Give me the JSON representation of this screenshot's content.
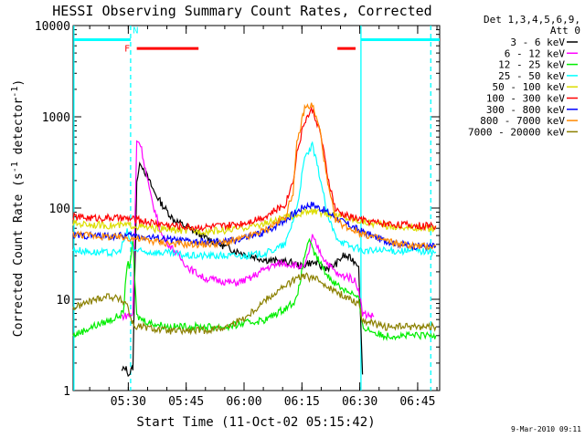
{
  "chart_data": {
    "type": "line",
    "title": "HESSI Observing Summary Count Rates, Corrected",
    "xlabel": "Start Time (11-Oct-02 05:15:42)",
    "ylabel": "Corrected Count Rate (s",
    "ylabel_sup1": "-1",
    "ylabel_mid": " detector",
    "ylabel_sup2": "-1",
    "ylabel_end": ")",
    "footer": "9-Mar-2010 09:11",
    "y_scale": "log",
    "ylim": [
      1,
      10000
    ],
    "xlim_minutes": [
      0,
      95
    ],
    "x_ticks": [
      {
        "label": "05:30",
        "m": 14.3
      },
      {
        "label": "05:45",
        "m": 29.3
      },
      {
        "label": "06:00",
        "m": 44.3
      },
      {
        "label": "06:15",
        "m": 59.3
      },
      {
        "label": "06:30",
        "m": 74.3
      },
      {
        "label": "06:45",
        "m": 89.3
      }
    ],
    "y_ticks": [
      {
        "label": "1",
        "v": 1
      },
      {
        "label": "10",
        "v": 10
      },
      {
        "label": "100",
        "v": 100
      },
      {
        "label": "1000",
        "v": 1000
      },
      {
        "label": "10000",
        "v": 10000
      }
    ],
    "legend_placement": "outside-right",
    "legend_header": [
      "Det 1,3,4,5,6,9,",
      "Att 0"
    ],
    "series": [
      {
        "name": "3 - 6 keV",
        "color": "#000000",
        "x": [
          12.5,
          13.5,
          14.5,
          15.5,
          16.5,
          17.5,
          19,
          21,
          23,
          26,
          30,
          34,
          38,
          42,
          46,
          50,
          54,
          57,
          59,
          61,
          63,
          64,
          66,
          68,
          70,
          72,
          74,
          75
        ],
        "y": [
          1.6,
          1.8,
          1.5,
          1.8,
          200,
          320,
          230,
          150,
          110,
          75,
          60,
          48,
          40,
          34,
          30,
          27,
          26,
          25,
          23,
          25,
          25,
          23,
          22,
          24,
          30,
          28,
          24,
          1.5
        ]
      },
      {
        "name": "6 - 12 keV",
        "color": "#ff00ff",
        "x": [
          12.5,
          15.5,
          16.5,
          17.5,
          18.5,
          20,
          23,
          26,
          30,
          34,
          38,
          42,
          46,
          50,
          54,
          57,
          60,
          61,
          62,
          63,
          65,
          67,
          69,
          71,
          73,
          74,
          75,
          78
        ],
        "y": [
          6.5,
          6.8,
          560,
          500,
          300,
          140,
          50,
          35,
          22,
          17,
          16,
          15,
          17,
          22,
          25,
          24,
          22,
          32,
          48,
          40,
          28,
          22,
          18,
          18,
          16,
          13,
          7,
          6.5
        ]
      },
      {
        "name": "12 - 25 keV",
        "color": "#00ee00",
        "x": [
          0,
          5,
          10,
          13,
          14,
          14.5,
          15.5,
          16.5,
          18,
          20,
          25,
          30,
          35,
          40,
          45,
          50,
          55,
          58,
          60,
          61,
          62,
          64,
          66,
          68,
          70,
          72,
          74,
          75,
          80,
          90,
          94
        ],
        "y": [
          4,
          5,
          6,
          7,
          25,
          23,
          40,
          6.5,
          6,
          5.5,
          5,
          5,
          5,
          5,
          5.5,
          6,
          8,
          10,
          30,
          45,
          35,
          25,
          18,
          15,
          13,
          12,
          10,
          5,
          4,
          4,
          4
        ]
      },
      {
        "name": "25 - 50 keV",
        "color": "#00ffff",
        "x": [
          0,
          5,
          10,
          12,
          14,
          15.5,
          16.5,
          18,
          20,
          25,
          30,
          40,
          45,
          50,
          55,
          58,
          60,
          62,
          64,
          66,
          68,
          70,
          72,
          74,
          75,
          80,
          90,
          94
        ],
        "y": [
          35,
          33,
          32,
          33,
          55,
          36,
          34,
          33,
          33,
          32,
          30,
          30,
          30,
          32,
          40,
          100,
          350,
          480,
          220,
          80,
          50,
          42,
          38,
          36,
          34,
          34,
          34,
          33
        ]
      },
      {
        "name": "50 - 100 keV",
        "color": "#dddd00",
        "x": [
          0,
          5,
          10,
          15,
          20,
          25,
          30,
          35,
          40,
          45,
          50,
          55,
          60,
          62,
          65,
          70,
          75,
          80,
          85,
          90,
          94
        ],
        "y": [
          68,
          66,
          64,
          65,
          60,
          58,
          56,
          56,
          57,
          62,
          68,
          78,
          90,
          92,
          88,
          80,
          72,
          65,
          62,
          60,
          60
        ]
      },
      {
        "name": "100 - 300 keV",
        "color": "#ff0000",
        "x": [
          0,
          5,
          10,
          15,
          20,
          25,
          30,
          35,
          40,
          45,
          50,
          55,
          57,
          58,
          60,
          62,
          64,
          66,
          68,
          70,
          72,
          74,
          76,
          80,
          85,
          90,
          94
        ],
        "y": [
          80,
          78,
          78,
          76,
          70,
          65,
          62,
          62,
          64,
          70,
          82,
          110,
          200,
          400,
          900,
          1200,
          700,
          220,
          95,
          85,
          80,
          76,
          72,
          68,
          66,
          64,
          64
        ]
      },
      {
        "name": "300 - 800 keV",
        "color": "#0000ff",
        "x": [
          0,
          5,
          10,
          15,
          20,
          25,
          30,
          35,
          40,
          45,
          50,
          55,
          60,
          62,
          65,
          70,
          75,
          80,
          85,
          90,
          94
        ],
        "y": [
          50,
          50,
          49,
          50,
          48,
          45,
          43,
          42,
          43,
          47,
          55,
          75,
          105,
          110,
          95,
          70,
          55,
          45,
          40,
          38,
          38
        ]
      },
      {
        "name": "800 - 7000 keV",
        "color": "#ff8800",
        "x": [
          0,
          5,
          10,
          15,
          20,
          25,
          30,
          35,
          40,
          45,
          50,
          55,
          57,
          58,
          60,
          62,
          64,
          66,
          68,
          70,
          75,
          80,
          85,
          90,
          94
        ],
        "y": [
          52,
          50,
          48,
          47,
          44,
          41,
          40,
          40,
          42,
          48,
          58,
          80,
          150,
          500,
          1250,
          1350,
          700,
          180,
          75,
          65,
          52,
          45,
          40,
          38,
          38
        ]
      },
      {
        "name": "7000 - 20000 keV",
        "color": "#8b8000",
        "x": [
          0,
          3,
          6,
          9,
          12,
          14,
          15,
          16,
          18,
          20,
          25,
          30,
          35,
          40,
          45,
          50,
          55,
          58,
          60,
          62,
          64,
          66,
          68,
          70,
          72,
          74,
          75,
          80,
          85,
          90,
          94
        ],
        "y": [
          8,
          9,
          10,
          11,
          10,
          9,
          6,
          5,
          5,
          4.8,
          4.5,
          4.5,
          4.6,
          5,
          6.5,
          10,
          14,
          17,
          18,
          17,
          16,
          14,
          12,
          11,
          10,
          9,
          6,
          5,
          5,
          5,
          5
        ]
      }
    ],
    "annotations": {
      "top_bars": [
        {
          "label": "",
          "color": "#00ffff",
          "x0": 0.2,
          "x1": 14.9,
          "y": 7000
        },
        {
          "label": "",
          "color": "#00ffff",
          "x0": 74.6,
          "x1": 95,
          "y": 7000
        },
        {
          "label": "",
          "color": "#ff0000",
          "x0": 16.5,
          "x1": 32.5,
          "y": 5600
        },
        {
          "label": "",
          "color": "#ff0000",
          "x0": 68.5,
          "x1": 73.2,
          "y": 5600
        }
      ],
      "top_letters": [
        {
          "text": "F",
          "color": "#ff0000",
          "m": 14.0,
          "y": 5200
        },
        {
          "text": "N",
          "color": "#00ffff",
          "m": 16.2,
          "y": 8200
        }
      ],
      "vertical_lines": [
        {
          "color": "#00ffff",
          "style": "solid",
          "m": 0.2
        },
        {
          "color": "#00ffff",
          "style": "dashed",
          "m": 14.9
        },
        {
          "color": "#00ffff",
          "style": "solid",
          "m": 74.6
        },
        {
          "color": "#00ffff",
          "style": "dashed",
          "m": 92.7
        }
      ]
    }
  }
}
